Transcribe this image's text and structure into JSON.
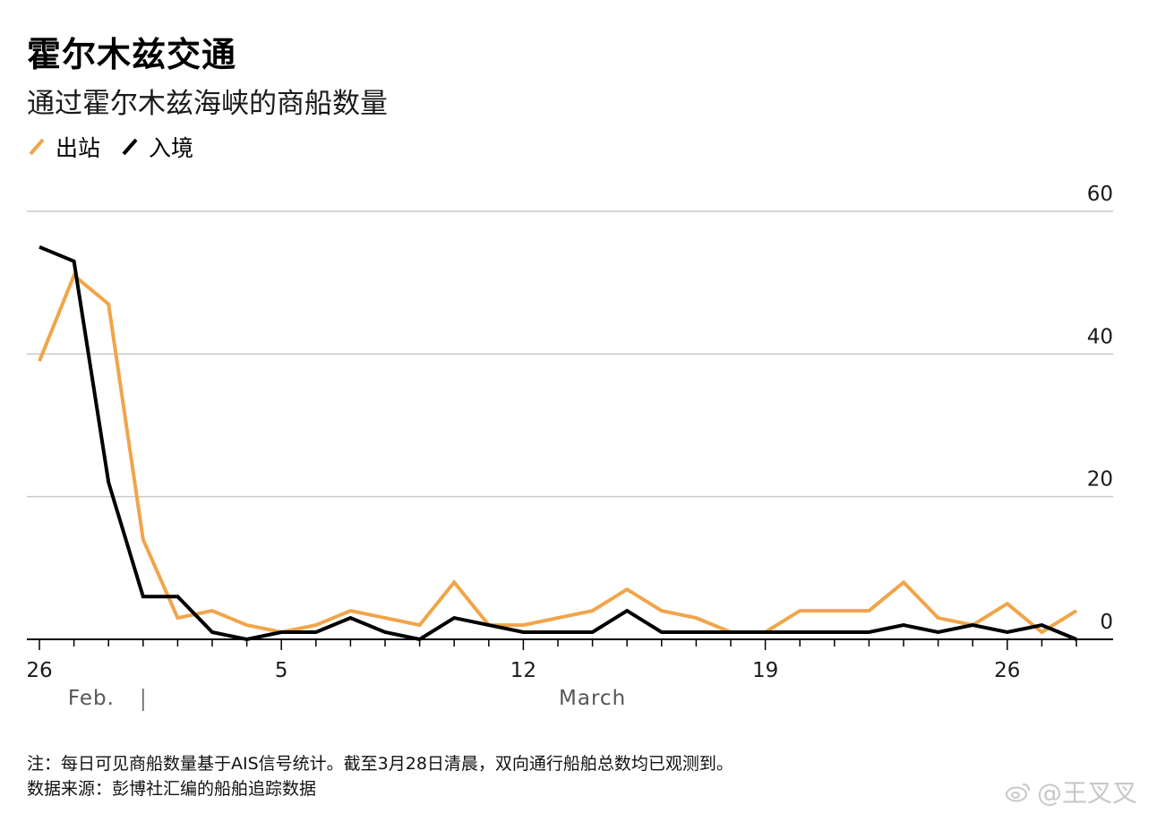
{
  "title": "霍尔木兹交通",
  "subtitle": "通过霍尔木兹海峡的商船数量",
  "legend": [
    {
      "label": "出站",
      "color": "#F0A54A"
    },
    {
      "label": "入境",
      "color": "#000000"
    }
  ],
  "note": "注：每日可见商船数量基于AIS信号统计。截至3月28日清晨，双向通行船舶总数均已观测到。",
  "source": "数据来源：彭博社汇编的船舶追踪数据",
  "watermark": "@王叉叉",
  "chart_data": {
    "type": "line",
    "x": [
      "Feb 26",
      "Feb 27",
      "Feb 28",
      "Mar 1",
      "Mar 2",
      "Mar 3",
      "Mar 4",
      "Mar 5",
      "Mar 6",
      "Mar 7",
      "Mar 8",
      "Mar 9",
      "Mar 10",
      "Mar 11",
      "Mar 12",
      "Mar 13",
      "Mar 14",
      "Mar 15",
      "Mar 16",
      "Mar 17",
      "Mar 18",
      "Mar 19",
      "Mar 20",
      "Mar 21",
      "Mar 22",
      "Mar 23",
      "Mar 24",
      "Mar 25",
      "Mar 26",
      "Mar 27",
      "Mar 28"
    ],
    "x_tick_labels": [
      {
        "label": "26",
        "index": 0
      },
      {
        "label": "5",
        "index": 7
      },
      {
        "label": "12",
        "index": 14
      },
      {
        "label": "19",
        "index": 21
      },
      {
        "label": "26",
        "index": 28
      }
    ],
    "month_labels": [
      {
        "label": "Feb.",
        "index": 1.5
      },
      {
        "label": "March",
        "index": 16
      }
    ],
    "month_divider_index": 3,
    "y_ticks": [
      0,
      20,
      40,
      60
    ],
    "ylim": [
      0,
      60
    ],
    "grid": true,
    "legend_position": "top-left",
    "series": [
      {
        "name": "出站",
        "color": "#F0A54A",
        "values": [
          39,
          51,
          47,
          14,
          3,
          4,
          2,
          1,
          2,
          4,
          3,
          2,
          8,
          2,
          2,
          3,
          4,
          7,
          4,
          3,
          1,
          1,
          4,
          4,
          4,
          8,
          3,
          2,
          5,
          1,
          4
        ]
      },
      {
        "name": "入境",
        "color": "#000000",
        "values": [
          55,
          53,
          22,
          6,
          6,
          1,
          0,
          1,
          1,
          3,
          1,
          0,
          3,
          2,
          1,
          1,
          1,
          4,
          1,
          1,
          1,
          1,
          1,
          1,
          1,
          2,
          1,
          2,
          1,
          2,
          0
        ]
      }
    ]
  }
}
